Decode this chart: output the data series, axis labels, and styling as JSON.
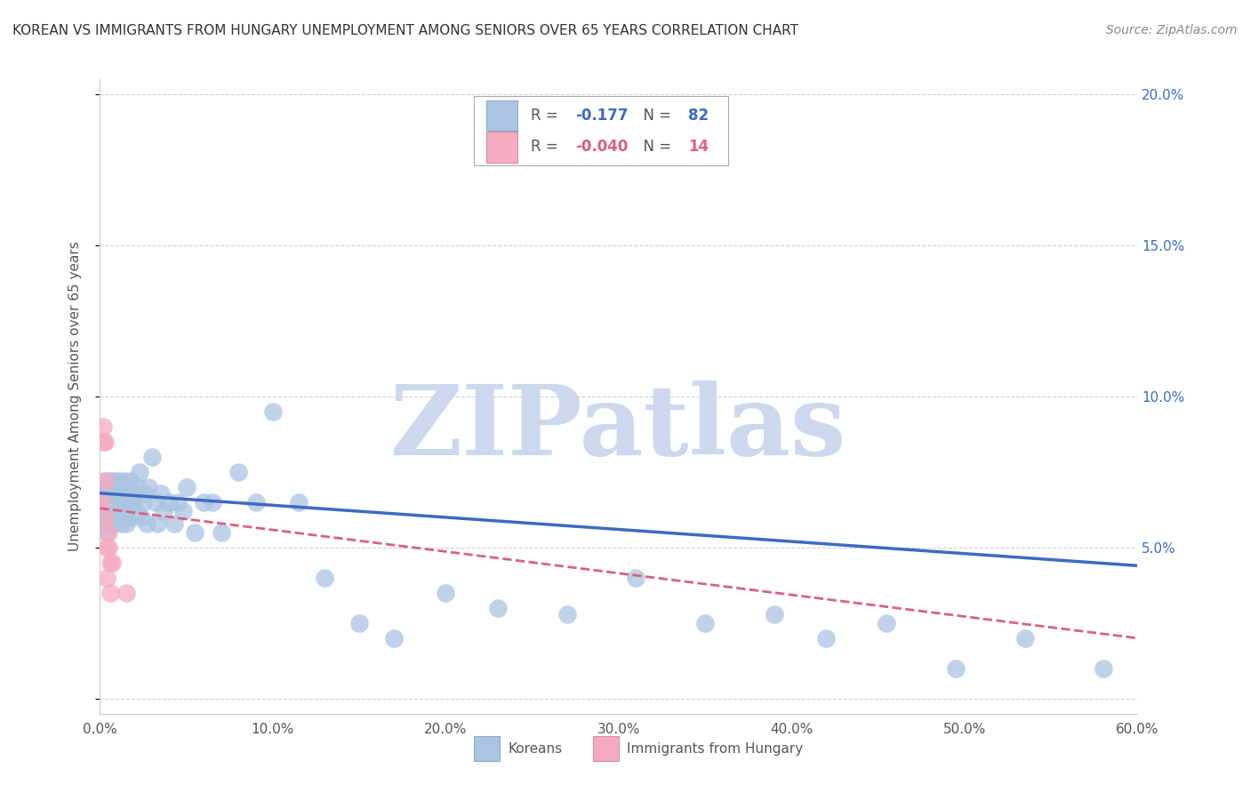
{
  "title": "KOREAN VS IMMIGRANTS FROM HUNGARY UNEMPLOYMENT AMONG SENIORS OVER 65 YEARS CORRELATION CHART",
  "source": "Source: ZipAtlas.com",
  "ylabel": "Unemployment Among Seniors over 65 years",
  "xlim": [
    0,
    0.6
  ],
  "ylim": [
    -0.005,
    0.205
  ],
  "xticks": [
    0.0,
    0.1,
    0.2,
    0.3,
    0.4,
    0.5,
    0.6
  ],
  "xtick_labels": [
    "0.0%",
    "10.0%",
    "20.0%",
    "30.0%",
    "40.0%",
    "50.0%",
    "60.0%"
  ],
  "yticks": [
    0.0,
    0.05,
    0.1,
    0.15,
    0.2
  ],
  "ytick_labels_right": [
    "",
    "5.0%",
    "10.0%",
    "15.0%",
    "20.0%"
  ],
  "korean_R": -0.177,
  "korean_N": 82,
  "hungary_R": -0.04,
  "hungary_N": 14,
  "korean_color": "#aac4e2",
  "hungary_color": "#f5aabf",
  "korean_line_color": "#3c6abf",
  "hungary_line_color": "#d96080",
  "watermark": "ZIPatlas",
  "watermark_color": "#ccd8ee",
  "korean_x": [
    0.001,
    0.002,
    0.002,
    0.003,
    0.003,
    0.003,
    0.004,
    0.004,
    0.004,
    0.005,
    0.005,
    0.005,
    0.006,
    0.006,
    0.006,
    0.007,
    0.007,
    0.007,
    0.008,
    0.008,
    0.008,
    0.009,
    0.009,
    0.01,
    0.01,
    0.01,
    0.011,
    0.011,
    0.012,
    0.012,
    0.013,
    0.013,
    0.014,
    0.014,
    0.015,
    0.015,
    0.016,
    0.016,
    0.017,
    0.018,
    0.019,
    0.02,
    0.021,
    0.022,
    0.023,
    0.024,
    0.025,
    0.026,
    0.027,
    0.028,
    0.03,
    0.032,
    0.033,
    0.035,
    0.037,
    0.04,
    0.043,
    0.045,
    0.048,
    0.05,
    0.055,
    0.06,
    0.065,
    0.07,
    0.08,
    0.09,
    0.1,
    0.115,
    0.13,
    0.15,
    0.17,
    0.2,
    0.23,
    0.27,
    0.31,
    0.35,
    0.39,
    0.42,
    0.455,
    0.495,
    0.535,
    0.58
  ],
  "korean_y": [
    0.065,
    0.07,
    0.06,
    0.072,
    0.065,
    0.058,
    0.068,
    0.062,
    0.055,
    0.07,
    0.065,
    0.06,
    0.072,
    0.068,
    0.058,
    0.07,
    0.065,
    0.06,
    0.072,
    0.065,
    0.058,
    0.068,
    0.062,
    0.07,
    0.065,
    0.06,
    0.072,
    0.065,
    0.068,
    0.058,
    0.07,
    0.065,
    0.06,
    0.072,
    0.068,
    0.058,
    0.07,
    0.065,
    0.06,
    0.072,
    0.065,
    0.068,
    0.062,
    0.07,
    0.075,
    0.06,
    0.065,
    0.068,
    0.058,
    0.07,
    0.08,
    0.065,
    0.058,
    0.068,
    0.062,
    0.065,
    0.058,
    0.065,
    0.062,
    0.07,
    0.055,
    0.065,
    0.065,
    0.055,
    0.075,
    0.065,
    0.095,
    0.065,
    0.04,
    0.025,
    0.02,
    0.035,
    0.03,
    0.028,
    0.04,
    0.025,
    0.028,
    0.02,
    0.025,
    0.01,
    0.02,
    0.01
  ],
  "hungary_x": [
    0.001,
    0.002,
    0.002,
    0.003,
    0.003,
    0.003,
    0.004,
    0.004,
    0.005,
    0.005,
    0.006,
    0.006,
    0.007,
    0.015
  ],
  "hungary_y": [
    0.065,
    0.09,
    0.085,
    0.085,
    0.072,
    0.06,
    0.05,
    0.04,
    0.055,
    0.05,
    0.045,
    0.035,
    0.045,
    0.035
  ],
  "korean_line_x0": 0.0,
  "korean_line_x1": 0.6,
  "korean_line_y0": 0.068,
  "korean_line_y1": 0.044,
  "hungary_line_x0": 0.0,
  "hungary_line_x1": 0.6,
  "hungary_line_y0": 0.063,
  "hungary_line_y1": 0.02
}
